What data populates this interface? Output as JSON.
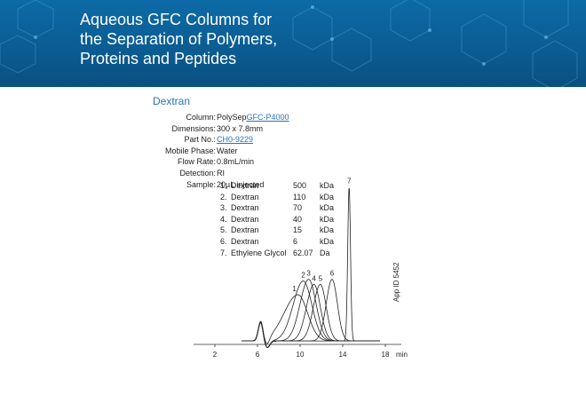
{
  "banner": {
    "title_lines": [
      "Aqueous GFC Columns for",
      "the Separation of Polymers,",
      "Proteins and Peptides"
    ]
  },
  "section_title": "Dextran",
  "parameters": [
    {
      "label": "Column:",
      "value": "PolySep",
      "link": "GFC-P4000"
    },
    {
      "label": "Dimensions:",
      "value": "300 x 7.8mm"
    },
    {
      "label": "Part No.:",
      "value": "",
      "link": "CH0-9229"
    },
    {
      "label": "Mobile Phase:",
      "value": "Water"
    },
    {
      "label": "Flow Rate:",
      "value": "0.8mL/min"
    },
    {
      "label": "Detection:",
      "value": "RI"
    },
    {
      "label": "Sample:",
      "value": "20µL injected"
    }
  ],
  "samples": [
    {
      "num": "1.",
      "name": "Dextran",
      "value": "500",
      "unit": "kDa"
    },
    {
      "num": "2.",
      "name": "Dextran",
      "value": "110",
      "unit": "kDa"
    },
    {
      "num": "3.",
      "name": "Dextran",
      "value": "70",
      "unit": "kDa"
    },
    {
      "num": "4.",
      "name": "Dextran",
      "value": "40",
      "unit": "kDa"
    },
    {
      "num": "5.",
      "name": "Dextran",
      "value": "15",
      "unit": "kDa"
    },
    {
      "num": "6.",
      "name": "Dextran",
      "value": "6",
      "unit": "kDa"
    },
    {
      "num": "7.",
      "name": "Ethylene Glycol",
      "value": "62.07",
      "unit": "Da"
    }
  ],
  "app_id": "App ID 5452",
  "chart_data": {
    "type": "line",
    "title": "",
    "xlabel": "min",
    "ylabel": "",
    "xlim": [
      0,
      19.5
    ],
    "x_ticks": [
      2,
      6,
      10,
      14,
      18
    ],
    "ylim": [
      0,
      1.0
    ],
    "grid": false,
    "baseline": 0.02,
    "system_peaks": [
      {
        "center": 6.3,
        "height": 0.11,
        "width": 0.22
      },
      {
        "center": 6.9,
        "height": -0.04,
        "width": 0.25
      }
    ],
    "series": [
      {
        "name": "1",
        "peak_x": 9.8,
        "height": 0.27,
        "sigma_left": 1.3,
        "sigma_right": 0.9
      },
      {
        "name": "2",
        "peak_x": 10.3,
        "height": 0.35,
        "sigma_left": 0.95,
        "sigma_right": 0.8
      },
      {
        "name": "3",
        "peak_x": 10.8,
        "height": 0.36,
        "sigma_left": 0.8,
        "sigma_right": 0.7
      },
      {
        "name": "4",
        "peak_x": 11.3,
        "height": 0.33,
        "sigma_left": 0.7,
        "sigma_right": 0.6
      },
      {
        "name": "5",
        "peak_x": 11.9,
        "height": 0.33,
        "sigma_left": 0.65,
        "sigma_right": 0.55
      },
      {
        "name": "6",
        "peak_x": 13.0,
        "height": 0.36,
        "sigma_left": 0.55,
        "sigma_right": 0.5
      },
      {
        "name": "7",
        "peak_x": 14.6,
        "height": 0.9,
        "sigma_left": 0.13,
        "sigma_right": 0.13
      }
    ]
  }
}
